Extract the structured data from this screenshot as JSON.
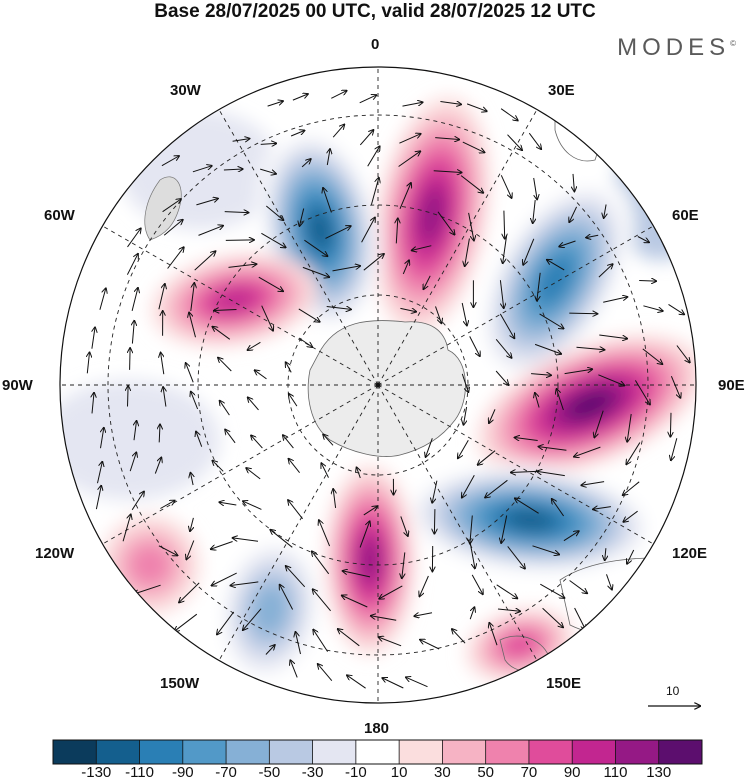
{
  "header": {
    "title": "Base 28/07/2025 00 UTC, valid 28/07/2025 12 UTC",
    "brand": "MODES",
    "brand_mark": "©"
  },
  "map": {
    "projection": "south polar stereographic",
    "longitude_labels": {
      "top": "0",
      "top_right": "30E",
      "upper_right": "60E",
      "right": "90E",
      "lower_right": "120E",
      "bottom_right": "150E",
      "bottom": "180",
      "bottom_left": "150W",
      "lower_left": "120W",
      "left": "90W",
      "upper_left": "60W",
      "top_left": "30W"
    },
    "reference_vector_label": "10",
    "anomaly_centers": [
      {
        "name": "positive-anomaly-0E",
        "sign": "positive",
        "peak": 110
      },
      {
        "name": "negative-anomaly-20W",
        "sign": "negative",
        "peak": -130
      },
      {
        "name": "negative-anomaly-45E",
        "sign": "negative",
        "peak": -110
      },
      {
        "name": "positive-anomaly-80E",
        "sign": "positive",
        "peak": 130
      },
      {
        "name": "negative-anomaly-120E",
        "sign": "negative",
        "peak": -130
      },
      {
        "name": "positive-anomaly-170E",
        "sign": "positive",
        "peak": 110
      },
      {
        "name": "positive-anomaly-140E",
        "sign": "positive",
        "peak": 70
      },
      {
        "name": "positive-anomaly-70W",
        "sign": "positive",
        "peak": 90
      },
      {
        "name": "negative-anomaly-150W",
        "sign": "negative",
        "peak": -70
      },
      {
        "name": "positive-anomaly-120W",
        "sign": "positive",
        "peak": 50
      }
    ]
  },
  "colorbar": {
    "labels": [
      "-130",
      "-110",
      "-90",
      "-70",
      "-50",
      "-30",
      "-10",
      "10",
      "30",
      "50",
      "70",
      "90",
      "110",
      "130"
    ],
    "colors": [
      "#0b3b5c",
      "#145f8e",
      "#2a7fb5",
      "#5299c8",
      "#86b0d6",
      "#b9c9e3",
      "#e4e6f2",
      "#ffffff",
      "#fbdede",
      "#f6b3c4",
      "#ef82ad",
      "#e04c9b",
      "#c22690",
      "#951985",
      "#5c0e6e"
    ]
  }
}
